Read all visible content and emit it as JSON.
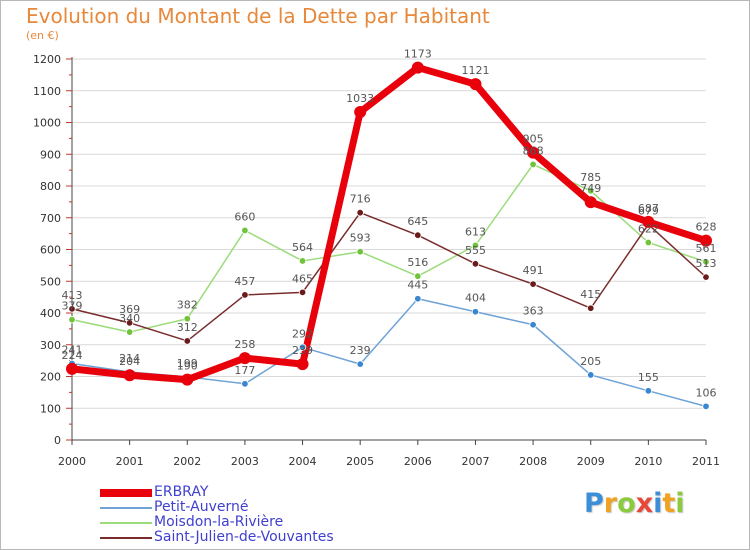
{
  "header": {
    "title": "Evolution du Montant de la Dette par Habitant",
    "unit": "(en €)"
  },
  "logo": {
    "letters": [
      {
        "ch": "P",
        "color": "#3c8fd6"
      },
      {
        "ch": "r",
        "color": "#f0a323"
      },
      {
        "ch": "o",
        "color": "#8ccb3f"
      },
      {
        "ch": "x",
        "color": "#e7483a"
      },
      {
        "ch": "i",
        "color": "#3c8fd6"
      },
      {
        "ch": "t",
        "color": "#f0a323"
      },
      {
        "ch": "i",
        "color": "#8ccb3f"
      }
    ]
  },
  "colors": {
    "title": "#e7883a",
    "legend_text": "#4040d0",
    "axis": "#444444",
    "grid": "#d9d9d9"
  },
  "chart_data": {
    "type": "line",
    "title": "Evolution du Montant de la Dette par Habitant",
    "subtitle": "(en €)",
    "xlabel": "",
    "ylabel": "",
    "ylim": [
      0,
      1200
    ],
    "yticks": [
      0,
      100,
      200,
      300,
      400,
      500,
      600,
      700,
      800,
      900,
      1000,
      1100,
      1200
    ],
    "grid": "horizontal",
    "legend_position": "bottom-left",
    "categories": [
      "2000",
      "2001",
      "2002",
      "2003",
      "2004",
      "2005",
      "2006",
      "2007",
      "2008",
      "2009",
      "2010",
      "2011"
    ],
    "series": [
      {
        "name": "ERBRAY",
        "color": "#e8000b",
        "marker": "#e8000b",
        "label_color": "#555555",
        "values": [
          224,
          204,
          190,
          258,
          239,
          1033,
          1173,
          1121,
          905,
          749,
          687,
          628
        ]
      },
      {
        "name": "Petit-Auverné",
        "color": "#6fa3d6",
        "marker": "#3a87d1",
        "label_color": "#555555",
        "values": [
          241,
          214,
          199,
          177,
          292,
          239,
          445,
          404,
          363,
          205,
          155,
          106
        ]
      },
      {
        "name": "Moisdon-la-Rivière",
        "color": "#9bdc7a",
        "marker": "#70c33a",
        "label_color": "#555555",
        "values": [
          379,
          340,
          382,
          660,
          564,
          593,
          516,
          613,
          868,
          785,
          622,
          561
        ]
      },
      {
        "name": "Saint-Julien-de-Vouvantes",
        "color": "#7a2c2c",
        "marker": "#6a1b1b",
        "label_color": "#555555",
        "values": [
          413,
          369,
          312,
          457,
          465,
          716,
          645,
          555,
          491,
          415,
          679,
          513
        ]
      }
    ]
  }
}
